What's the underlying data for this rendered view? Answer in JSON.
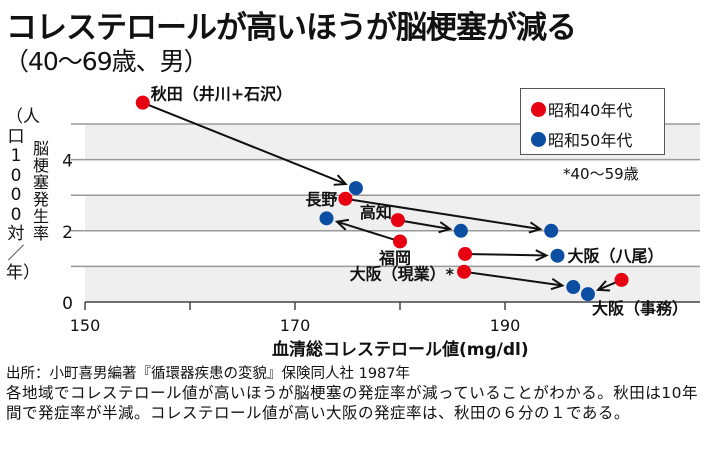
{
  "title": "コレステロールが高いほうが脳梗塞が減る",
  "subtitle": "（40〜69歳、男）",
  "chart_data": {
    "type": "scatter",
    "title": "コレステロールが高いほうが脳梗塞が減る",
    "subtitle": "（40〜69歳、男）",
    "xlabel": "血清総コレステロール値(mg/dl)",
    "ylabel": "脳梗塞発生率",
    "ylabel_unit": "（人口1000対／年）",
    "xlim": [
      150,
      205
    ],
    "ylim": [
      0,
      5.6
    ],
    "x_ticks": [
      150,
      160,
      170,
      180,
      190,
      200
    ],
    "x_tick_labels": [
      "150",
      "",
      "170",
      "",
      "190",
      ""
    ],
    "y_ticks": [
      0,
      1,
      2,
      3,
      4,
      5
    ],
    "y_tick_labels": [
      "0",
      "",
      "2",
      "",
      "4",
      ""
    ],
    "grid": "horizontal-bands",
    "legend_position": "top-right",
    "series": [
      {
        "name": "昭和40年代",
        "color": "#e60012"
      },
      {
        "name": "昭和50年代",
        "color": "#0b4ea2"
      }
    ],
    "regions": [
      {
        "label": "秋田（井川+石沢）",
        "s40": [
          155.5,
          5.6
        ],
        "s50": [
          175.8,
          3.2
        ],
        "label_anchor": "s40"
      },
      {
        "label": "長野",
        "s40": [
          174.8,
          2.9
        ],
        "s50": [
          194.4,
          2.0
        ],
        "label_anchor": "s40"
      },
      {
        "label": "高知",
        "s40": [
          179.8,
          2.3
        ],
        "s50": [
          185.8,
          2.0
        ],
        "label_anchor": "s40"
      },
      {
        "label": "福岡",
        "s40": [
          180.0,
          1.7
        ],
        "s50": [
          173.0,
          2.35
        ],
        "label_anchor": "s40"
      },
      {
        "label": "大阪（八尾）",
        "s40": [
          186.2,
          1.35
        ],
        "s50": [
          195.0,
          1.3
        ],
        "label_anchor": "s50"
      },
      {
        "label": "大阪（現業）*",
        "s40": [
          186.1,
          0.85
        ],
        "s50": [
          196.5,
          0.42
        ],
        "label_anchor": "s40"
      },
      {
        "label": "大阪（事務）",
        "s40": [
          201.1,
          0.62
        ],
        "s50": [
          197.9,
          0.22
        ],
        "label_anchor": "s50"
      }
    ],
    "annotation": "*40〜59歳"
  },
  "source": "出所：小町喜男編著『循環器疾患の変貌』保険同人社 1987年",
  "description": "各地域でコレステロール値が高いほうが脳梗塞の発症率が減っていることがわかる。秋田は10年間で発症率が半減。コレステロール値が高い大阪の発症率は、秋田の６分の１である。"
}
